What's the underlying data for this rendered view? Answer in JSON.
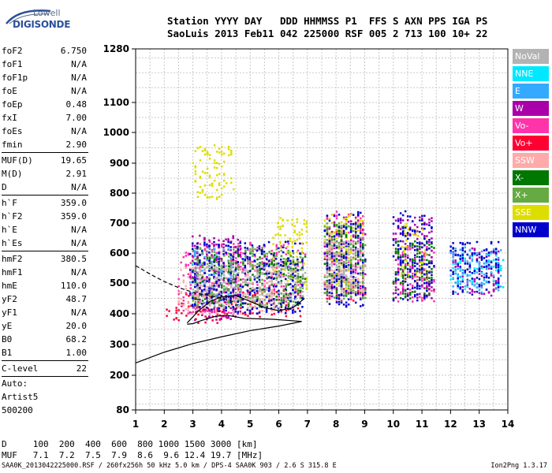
{
  "logo": {
    "top": "Lowell",
    "bottom": "DIGISONDE"
  },
  "header": {
    "line1": "Station YYYY DAY   DDD HHMMSS P1  FFS S AXN PPS IGA PS",
    "line2": "SaoLuis 2013 Feb11 042 225000 RSF 005 2 713 100 10+ 22"
  },
  "params_group1": [
    {
      "name": "foF2",
      "value": "6.750"
    },
    {
      "name": "foF1",
      "value": "N/A"
    },
    {
      "name": "foF1p",
      "value": "N/A"
    },
    {
      "name": "foE",
      "value": "N/A"
    },
    {
      "name": "foEp",
      "value": "0.48"
    },
    {
      "name": "fxI",
      "value": "7.00"
    },
    {
      "name": "foEs",
      "value": "N/A"
    },
    {
      "name": "fmin",
      "value": "2.90"
    }
  ],
  "params_group2": [
    {
      "name": "MUF(D)",
      "value": "19.65"
    },
    {
      "name": "M(D)",
      "value": "2.91"
    },
    {
      "name": "D",
      "value": "N/A"
    }
  ],
  "params_group3": [
    {
      "name": "h`F",
      "value": "359.0"
    },
    {
      "name": "h`F2",
      "value": "359.0"
    },
    {
      "name": "h`E",
      "value": "N/A"
    },
    {
      "name": "h`Es",
      "value": "N/A"
    }
  ],
  "params_group4": [
    {
      "name": "hmF2",
      "value": "380.5"
    },
    {
      "name": "hmF1",
      "value": "N/A"
    },
    {
      "name": "hmE",
      "value": "110.0"
    },
    {
      "name": "yF2",
      "value": "48.7"
    },
    {
      "name": "yF1",
      "value": "N/A"
    },
    {
      "name": "yE",
      "value": "20.0"
    },
    {
      "name": "B0",
      "value": "68.2"
    },
    {
      "name": "B1",
      "value": "1.00"
    }
  ],
  "clevel": {
    "name": "C-level",
    "value": "22"
  },
  "auto": [
    "Auto:",
    "Artist5",
    "500200"
  ],
  "distance_row": "D     100  200  400  600  800 1000 1500 3000 [km]",
  "muf_row": "MUF   7.1  7.2  7.5  7.9  8.6  9.6 12.4 19.7 [MHz]",
  "footer": "SAA0K_2013042225000.RSF / 260fx256h 50 kHz 5.0 km / DPS-4 SAA0K 903 / 2.6 S 315.8 E",
  "version": "Ion2Png 1.3.17",
  "legend": [
    {
      "label": "NoVal",
      "color": "#b3b3b3"
    },
    {
      "label": "NNE",
      "color": "#00e8ff"
    },
    {
      "label": "E",
      "color": "#33aaff"
    },
    {
      "label": "W",
      "color": "#aa00aa"
    },
    {
      "label": "Vo-",
      "color": "#ff33aa"
    },
    {
      "label": "Vo+",
      "color": "#ff0033"
    },
    {
      "label": "SSW",
      "color": "#ffaaaa"
    },
    {
      "label": "X-",
      "color": "#007700"
    },
    {
      "label": "X+",
      "color": "#66aa44"
    },
    {
      "label": "SSE",
      "color": "#dddd00"
    },
    {
      "label": "NNW",
      "color": "#0000cc"
    }
  ],
  "chart_data": {
    "type": "scatter",
    "x_ticks": [
      "1",
      "2",
      "3",
      "4",
      "5",
      "6",
      "7",
      "8",
      "9",
      "10",
      "11",
      "12",
      "13",
      "14"
    ],
    "y_ticks": [
      "80",
      "200",
      "300",
      "400",
      "500",
      "600",
      "700",
      "800",
      "900",
      "1000",
      "1100",
      "1280"
    ],
    "xlim": [
      1,
      14
    ],
    "ylim": [
      80,
      1280
    ],
    "grid": true,
    "series": [
      {
        "name": "Vo+",
        "color": "#ff0033",
        "clusters": [
          [
            2.0,
            2.6,
            370,
            420
          ],
          [
            2.6,
            4.5,
            370,
            470
          ],
          [
            4.5,
            6.8,
            390,
            480
          ],
          [
            7.6,
            9.0,
            440,
            500
          ]
        ]
      },
      {
        "name": "Vo-",
        "color": "#ff33aa",
        "clusters": [
          [
            2.5,
            4.6,
            400,
            640
          ],
          [
            4.5,
            6.9,
            440,
            640
          ],
          [
            7.6,
            9.0,
            450,
            740
          ],
          [
            10.0,
            11.4,
            440,
            640
          ]
        ]
      },
      {
        "name": "W",
        "color": "#aa00aa",
        "clusters": [
          [
            2.9,
            4.7,
            380,
            660
          ],
          [
            7.6,
            9.0,
            460,
            720
          ],
          [
            10.0,
            11.4,
            450,
            720
          ],
          [
            12.0,
            13.7,
            450,
            620
          ]
        ]
      },
      {
        "name": "SSE",
        "color": "#dddd00",
        "clusters": [
          [
            5.8,
            7.0,
            480,
            720
          ],
          [
            7.6,
            9.0,
            480,
            730
          ],
          [
            10.2,
            11.2,
            500,
            700
          ],
          [
            3.0,
            4.4,
            780,
            960
          ]
        ]
      },
      {
        "name": "NNE",
        "color": "#00e8ff",
        "clusters": [
          [
            12.0,
            13.8,
            480,
            600
          ]
        ]
      },
      {
        "name": "E",
        "color": "#33aaff",
        "clusters": [
          [
            2.9,
            4.5,
            450,
            620
          ],
          [
            12.0,
            13.8,
            470,
            620
          ]
        ]
      },
      {
        "name": "X-",
        "color": "#007700",
        "clusters": [
          [
            3.0,
            6.9,
            420,
            600
          ],
          [
            7.6,
            9.0,
            450,
            700
          ],
          [
            10.0,
            11.4,
            450,
            640
          ]
        ]
      },
      {
        "name": "X+",
        "color": "#66aa44",
        "clusters": [
          [
            3.0,
            6.9,
            430,
            620
          ],
          [
            7.6,
            9.0,
            440,
            700
          ]
        ]
      },
      {
        "name": "SSW",
        "color": "#ffaaaa",
        "clusters": [
          [
            2.5,
            6.0,
            400,
            560
          ],
          [
            7.6,
            9.0,
            470,
            640
          ]
        ]
      },
      {
        "name": "NNW",
        "color": "#0000cc",
        "clusters": [
          [
            2.9,
            6.9,
            400,
            640
          ],
          [
            7.6,
            9.0,
            420,
            740
          ],
          [
            10.0,
            11.4,
            440,
            740
          ],
          [
            12.0,
            13.7,
            460,
            640
          ]
        ]
      },
      {
        "name": "NoVal",
        "color": "#b3b3b3",
        "clusters": [
          [
            3.0,
            6.9,
            420,
            560
          ],
          [
            7.6,
            9.0,
            460,
            640
          ]
        ]
      }
    ],
    "profile_solid": [
      [
        1.0,
        240
      ],
      [
        2.0,
        275
      ],
      [
        3.0,
        303
      ],
      [
        4.0,
        325
      ],
      [
        5.0,
        345
      ],
      [
        6.0,
        360
      ],
      [
        6.8,
        375
      ],
      [
        5.8,
        382
      ],
      [
        4.8,
        385
      ],
      [
        4.2,
        395
      ],
      [
        3.8,
        392
      ],
      [
        3.3,
        378
      ],
      [
        3.0,
        368
      ],
      [
        2.8,
        366
      ]
    ],
    "trace_dashed": [
      [
        1.0,
        558
      ],
      [
        1.5,
        530
      ],
      [
        2.0,
        505
      ],
      [
        2.5,
        485
      ],
      [
        3.0,
        470
      ],
      [
        3.5,
        460
      ],
      [
        4.0,
        450
      ],
      [
        4.4,
        440
      ]
    ],
    "trace_solid_upper": [
      [
        2.8,
        370
      ],
      [
        3.2,
        410
      ],
      [
        3.6,
        440
      ],
      [
        4.0,
        455
      ],
      [
        4.5,
        460
      ],
      [
        5.0,
        440
      ],
      [
        5.5,
        420
      ],
      [
        6.0,
        410
      ],
      [
        6.5,
        420
      ],
      [
        6.9,
        450
      ]
    ]
  }
}
